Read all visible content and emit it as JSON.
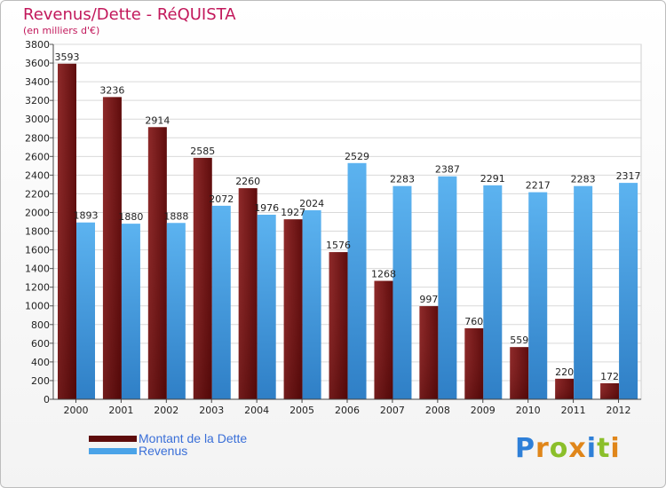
{
  "page": {
    "title": "Revenus/Dette - RéQUISTA",
    "subtitle": "(en milliers d'€)"
  },
  "colors": {
    "dette": "#7a1414",
    "revenus": "#4aa3e8",
    "title": "#c2185b"
  },
  "logo": {
    "text": "Proxiti",
    "letter_colors": [
      "#2e7fd8",
      "#e0861a",
      "#8bbf2a",
      "#e0861a",
      "#2e7fd8",
      "#8bbf2a",
      "#e0861a"
    ]
  },
  "chart_data": {
    "type": "bar",
    "title": "Revenus/Dette - RéQUISTA",
    "ylabel": "(en milliers d'€)",
    "ylim": [
      0,
      3800
    ],
    "yticks": [
      0,
      200,
      400,
      600,
      800,
      1000,
      1200,
      1400,
      1600,
      1800,
      2000,
      2200,
      2400,
      2600,
      2800,
      3000,
      3200,
      3400,
      3600,
      3800
    ],
    "grid": true,
    "legend_position": "bottom-left",
    "categories": [
      "2000",
      "2001",
      "2002",
      "2003",
      "2004",
      "2005",
      "2006",
      "2007",
      "2008",
      "2009",
      "2010",
      "2011",
      "2012"
    ],
    "series": [
      {
        "name": "Montant de la Dette",
        "values": [
          3593,
          3236,
          2914,
          2585,
          2260,
          1927,
          1576,
          1268,
          997,
          760,
          559,
          220,
          172
        ]
      },
      {
        "name": "Revenus",
        "values": [
          1893,
          1880,
          1888,
          2072,
          1976,
          2024,
          2529,
          2283,
          2387,
          2291,
          2217,
          2283,
          2317
        ]
      }
    ]
  }
}
